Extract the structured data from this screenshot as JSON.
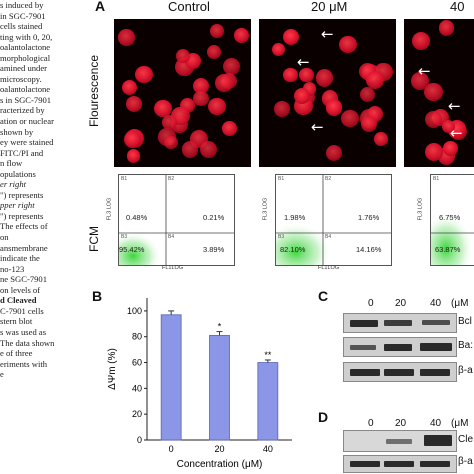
{
  "caption_lines": [
    "s induced by",
    "in SGC-7901",
    "cells stained",
    "ting with 0, 20,",
    "oalantolactone",
    "morphological",
    "amined under",
    "microscopy.",
    "oalantolactone",
    "s in SGC-7901",
    "racterized by",
    "ation or nuclear",
    "shown by",
    "ey were stained",
    "FITC/PI and",
    "n flow",
    "opulations",
    "er right",
    "\") represents",
    "pper right",
    "\") represents",
    "The effects of",
    "on",
    "ansmembrane",
    "indicate the",
    "no-123",
    "ne SGC-7901",
    "on levels of",
    "d Cleaved",
    "C-7901 cells",
    "stern blot",
    "s was used as",
    "The data shown",
    "e of three",
    "eriments with",
    "e"
  ],
  "panel_a": {
    "letter": "A",
    "columns": [
      "Control",
      "20 μM",
      "40"
    ],
    "row_labels": [
      "Flourescence",
      "FCM"
    ],
    "arrow_glyph": "←",
    "flow": [
      {
        "b1": "B1",
        "b2": "B2",
        "b3": "B3",
        "b4": "B4",
        "ul": "0.48%",
        "ur": "0.21%",
        "ll": "95.42%",
        "lr": "3.89%",
        "xlab": "FL1LOG",
        "ylab": "FL3 LOG"
      },
      {
        "b1": "B1",
        "b2": "B2",
        "b3": "B3",
        "b4": "B4",
        "ul": "1.98%",
        "ur": "1.76%",
        "ll": "82.10%",
        "lr": "14.16%",
        "xlab": "FL1LOG",
        "ylab": "FL3 LOG"
      },
      {
        "b1": "B1",
        "ul": "6.75%",
        "ll": "63.87%",
        "ylab": "FL3 LOG"
      }
    ]
  },
  "panel_b": {
    "letter": "B",
    "ylabel": "ΔΨm (%)",
    "xlabel": "Concentration (μM)",
    "significance": [
      "*",
      "**"
    ]
  },
  "chart_data": {
    "type": "bar",
    "categories": [
      "0",
      "20",
      "40"
    ],
    "values": [
      97,
      81,
      60
    ],
    "errors": [
      3,
      3,
      2
    ],
    "ylim": [
      0,
      110
    ],
    "yticks": [
      "0",
      "20",
      "40",
      "60",
      "80",
      "100"
    ],
    "xlabel": "Concentration (μM)",
    "ylabel": "ΔΨm (%)",
    "bar_color": "#8c96e6"
  },
  "panel_c": {
    "letter": "C",
    "conc": [
      "0",
      "20",
      "40"
    ],
    "unit": "(μM",
    "labels": [
      "Bcl",
      "Ba:",
      "β-a"
    ]
  },
  "panel_d": {
    "letter": "D",
    "conc": [
      "0",
      "20",
      "40"
    ],
    "unit": "(μM",
    "labels": [
      "Cle",
      "β-a"
    ]
  }
}
